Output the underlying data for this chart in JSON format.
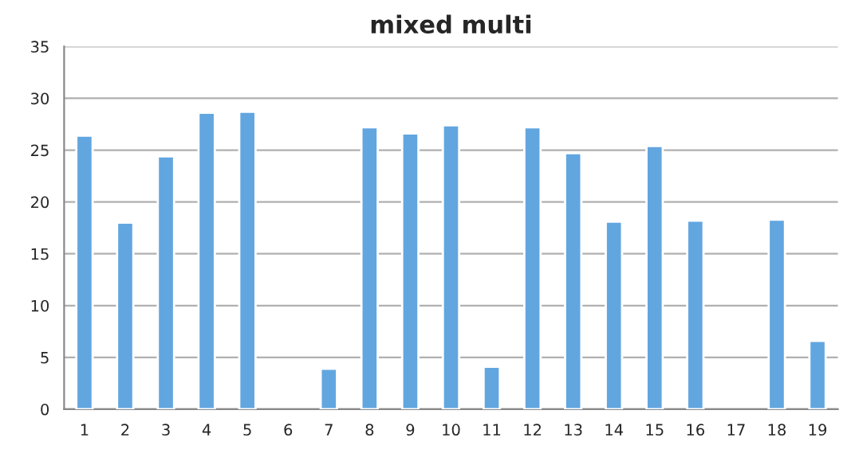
{
  "chart_data": {
    "type": "bar",
    "title": "mixed multi",
    "categories": [
      "1",
      "2",
      "3",
      "4",
      "5",
      "6",
      "7",
      "8",
      "9",
      "10",
      "11",
      "12",
      "13",
      "14",
      "15",
      "16",
      "17",
      "18",
      "19"
    ],
    "values": [
      26.4,
      18.0,
      24.4,
      28.6,
      28.7,
      null,
      3.9,
      27.2,
      26.6,
      27.4,
      4.1,
      27.2,
      24.7,
      18.1,
      25.4,
      18.2,
      null,
      18.3,
      6.6
    ],
    "color": "#62a6e0",
    "ylim": [
      0,
      35
    ],
    "yticks": [
      0,
      5,
      10,
      15,
      20,
      25,
      30,
      35
    ],
    "grid": "y",
    "legend": false
  }
}
